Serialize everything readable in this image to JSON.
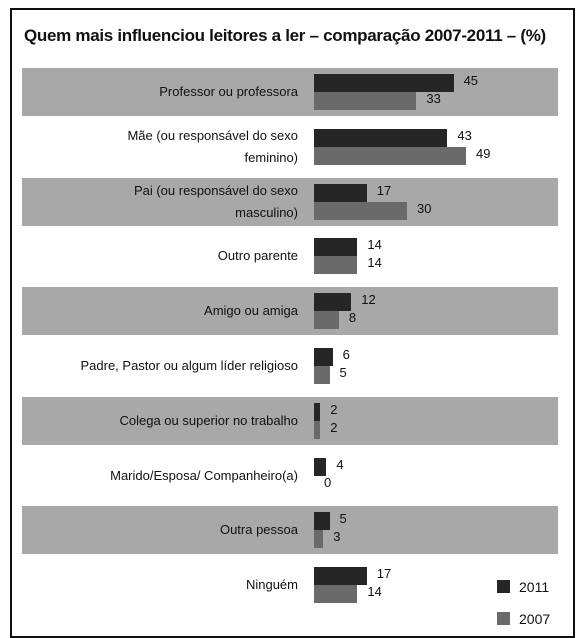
{
  "chart_data": {
    "type": "bar",
    "orientation": "horizontal",
    "title": "Quem mais influenciou leitores a ler – comparação 2007-2011 – (%)",
    "categories": [
      "Professor ou professora",
      "Mãe (ou responsável do sexo feminino)",
      "Pai (ou responsável do sexo masculino)",
      "Outro parente",
      "Amigo ou amiga",
      "Padre, Pastor ou algum líder religioso",
      "Colega ou superior no trabalho",
      "Marido/Esposa/ Companheiro(a)",
      "Outra pessoa",
      "Ninguém"
    ],
    "series": [
      {
        "name": "2011",
        "color": "#262626",
        "values": [
          45,
          43,
          17,
          14,
          12,
          6,
          2,
          4,
          5,
          17
        ]
      },
      {
        "name": "2007",
        "color": "#6a6a6a",
        "values": [
          33,
          49,
          30,
          14,
          8,
          5,
          2,
          0,
          3,
          14
        ]
      }
    ],
    "legend": "bottom-right"
  }
}
